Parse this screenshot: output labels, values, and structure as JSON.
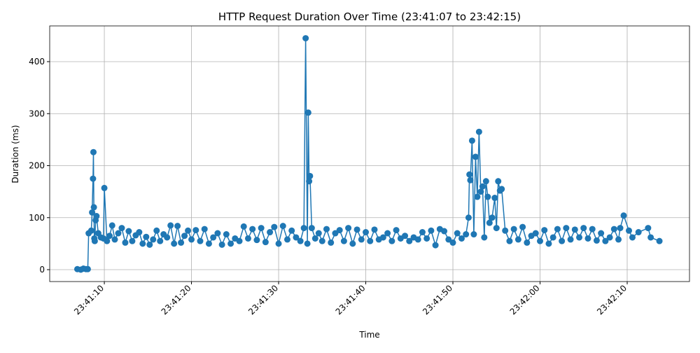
{
  "chart_data": {
    "type": "line",
    "title": "HTTP Request Duration Over Time (23:41:07 to 23:42:15)",
    "x_label": "Time",
    "y_label": "Duration (ms)",
    "grid": true,
    "xlim": [
      3.73,
      77.15
    ],
    "ylim": [
      -22.9,
      468.7
    ],
    "xticks": [
      {
        "value": 10,
        "label": "23:41:10"
      },
      {
        "value": 20,
        "label": "23:41:20"
      },
      {
        "value": 30,
        "label": "23:41:30"
      },
      {
        "value": 40,
        "label": "23:41:40"
      },
      {
        "value": 50,
        "label": "23:41:50"
      },
      {
        "value": 60,
        "label": "23:42:00"
      },
      {
        "value": 70,
        "label": "23:42:10"
      }
    ],
    "yticks": [
      0,
      100,
      200,
      300,
      400
    ],
    "series": [
      {
        "name": "Duration",
        "color": "#1f77b4",
        "x": [
          6.9,
          7.3,
          7.6,
          7.9,
          8.1,
          8.2,
          8.5,
          8.6,
          8.7,
          8.75,
          8.8,
          8.85,
          8.9,
          9.0,
          9.1,
          9.3,
          9.6,
          9.9,
          10.0,
          10.3,
          10.6,
          10.9,
          11.2,
          11.6,
          12.0,
          12.4,
          12.8,
          13.2,
          13.6,
          14.0,
          14.4,
          14.8,
          15.2,
          15.6,
          16.0,
          16.4,
          16.8,
          17.2,
          17.6,
          18.0,
          18.4,
          18.8,
          19.2,
          19.6,
          20.0,
          20.5,
          21.0,
          21.5,
          22.0,
          22.5,
          23.0,
          23.5,
          24.0,
          24.5,
          25.0,
          25.5,
          26.0,
          26.5,
          27.0,
          27.5,
          28.0,
          28.5,
          29.0,
          29.5,
          30.0,
          30.5,
          31.0,
          31.5,
          32.0,
          32.5,
          32.9,
          33.1,
          33.3,
          33.4,
          33.5,
          33.6,
          33.8,
          34.2,
          34.6,
          35.0,
          35.5,
          36.0,
          36.5,
          37.0,
          37.5,
          38.0,
          38.5,
          39.0,
          39.5,
          40.0,
          40.5,
          41.0,
          41.5,
          42.0,
          42.5,
          43.0,
          43.5,
          44.0,
          44.5,
          45.0,
          45.5,
          46.0,
          46.5,
          47.0,
          47.5,
          48.0,
          48.5,
          49.0,
          49.5,
          50.0,
          50.5,
          51.0,
          51.5,
          51.8,
          51.9,
          52.0,
          52.2,
          52.4,
          52.6,
          52.8,
          53.0,
          53.2,
          53.4,
          53.6,
          53.8,
          54.0,
          54.2,
          54.5,
          54.8,
          55.0,
          55.2,
          55.4,
          55.6,
          56.0,
          56.5,
          57.0,
          57.5,
          58.0,
          58.5,
          59.0,
          59.5,
          60.0,
          60.5,
          61.0,
          61.5,
          62.0,
          62.5,
          63.0,
          63.5,
          64.0,
          64.5,
          65.0,
          65.5,
          66.0,
          66.5,
          67.0,
          67.5,
          68.0,
          68.5,
          69.0,
          69.2,
          69.6,
          70.2,
          70.6,
          71.3,
          72.4,
          72.7,
          73.7
        ],
        "values": [
          1,
          0,
          2,
          1,
          1,
          70,
          75,
          110,
          175,
          226,
          120,
          60,
          55,
          95,
          103,
          70,
          62,
          60,
          157,
          55,
          65,
          85,
          58,
          70,
          80,
          52,
          74,
          55,
          66,
          72,
          50,
          63,
          48,
          58,
          75,
          55,
          68,
          62,
          85,
          50,
          84,
          52,
          65,
          75,
          58,
          76,
          55,
          78,
          50,
          62,
          70,
          48,
          68,
          50,
          60,
          55,
          83,
          60,
          78,
          57,
          80,
          53,
          72,
          82,
          50,
          84,
          58,
          75,
          62,
          55,
          80,
          445,
          50,
          302,
          170,
          180,
          80,
          60,
          70,
          55,
          78,
          52,
          70,
          76,
          55,
          80,
          50,
          77,
          58,
          72,
          55,
          77,
          58,
          62,
          70,
          55,
          76,
          60,
          65,
          55,
          62,
          58,
          72,
          60,
          75,
          47,
          78,
          74,
          58,
          52,
          70,
          60,
          68,
          100,
          183,
          172,
          248,
          68,
          217,
          140,
          265,
          150,
          160,
          62,
          170,
          140,
          90,
          100,
          138,
          80,
          170,
          152,
          155,
          75,
          55,
          78,
          58,
          82,
          52,
          65,
          70,
          55,
          76,
          50,
          62,
          78,
          55,
          80,
          58,
          77,
          62,
          80,
          60,
          78,
          56,
          70,
          55,
          62,
          78,
          58,
          80,
          104,
          75,
          62,
          72,
          80,
          62,
          55
        ]
      }
    ]
  }
}
